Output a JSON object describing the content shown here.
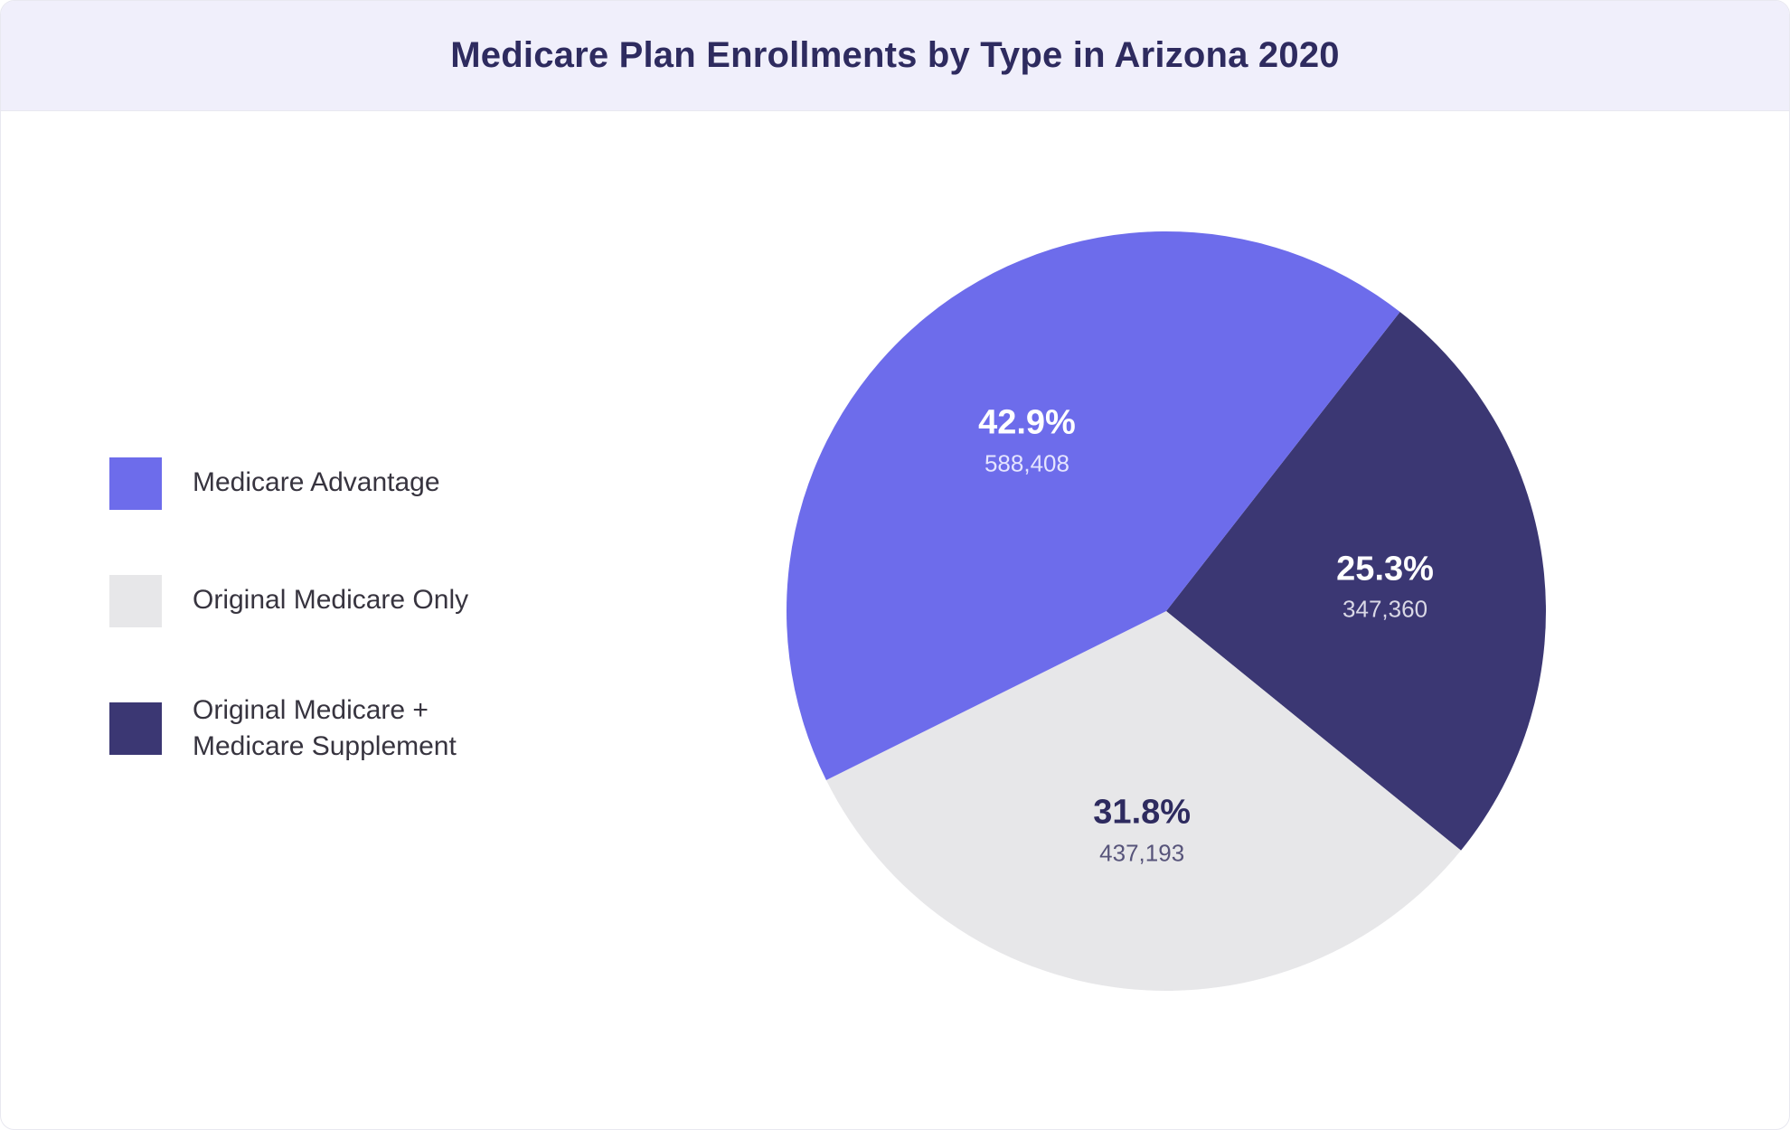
{
  "title": "Medicare Plan Enrollments by Type in Arizona 2020",
  "chart": {
    "type": "pie",
    "background_color": "#ffffff",
    "title_bg_color": "#f0effb",
    "title_color": "#2e2b5f",
    "title_fontsize": 40,
    "legend_fontsize": 30,
    "legend_text_color": "#37343f",
    "pct_fontsize": 38,
    "value_fontsize": 26,
    "start_angle_deg": -52,
    "slices": [
      {
        "key": "supplement",
        "label": "Original Medicare + Medicare Supplement",
        "percent": 25.3,
        "percent_display": "25.3%",
        "value": 347360,
        "value_display": "347,360",
        "color": "#3b3773",
        "label_text_color": "#ffffff",
        "label_value_color": "#d9d8e6"
      },
      {
        "key": "original",
        "label": "Original Medicare Only",
        "percent": 31.8,
        "percent_display": "31.8%",
        "value": 437193,
        "value_display": "437,193",
        "color": "#e7e7e9",
        "label_text_color": "#2e2b5f",
        "label_value_color": "#57547a"
      },
      {
        "key": "advantage",
        "label": "Medicare Advantage",
        "percent": 42.9,
        "percent_display": "42.9%",
        "value": 588408,
        "value_display": "588,408",
        "color": "#6d6ceb",
        "label_text_color": "#ffffff",
        "label_value_color": "#e5e5ff"
      }
    ],
    "legend_order": [
      "advantage",
      "original",
      "supplement"
    ]
  }
}
